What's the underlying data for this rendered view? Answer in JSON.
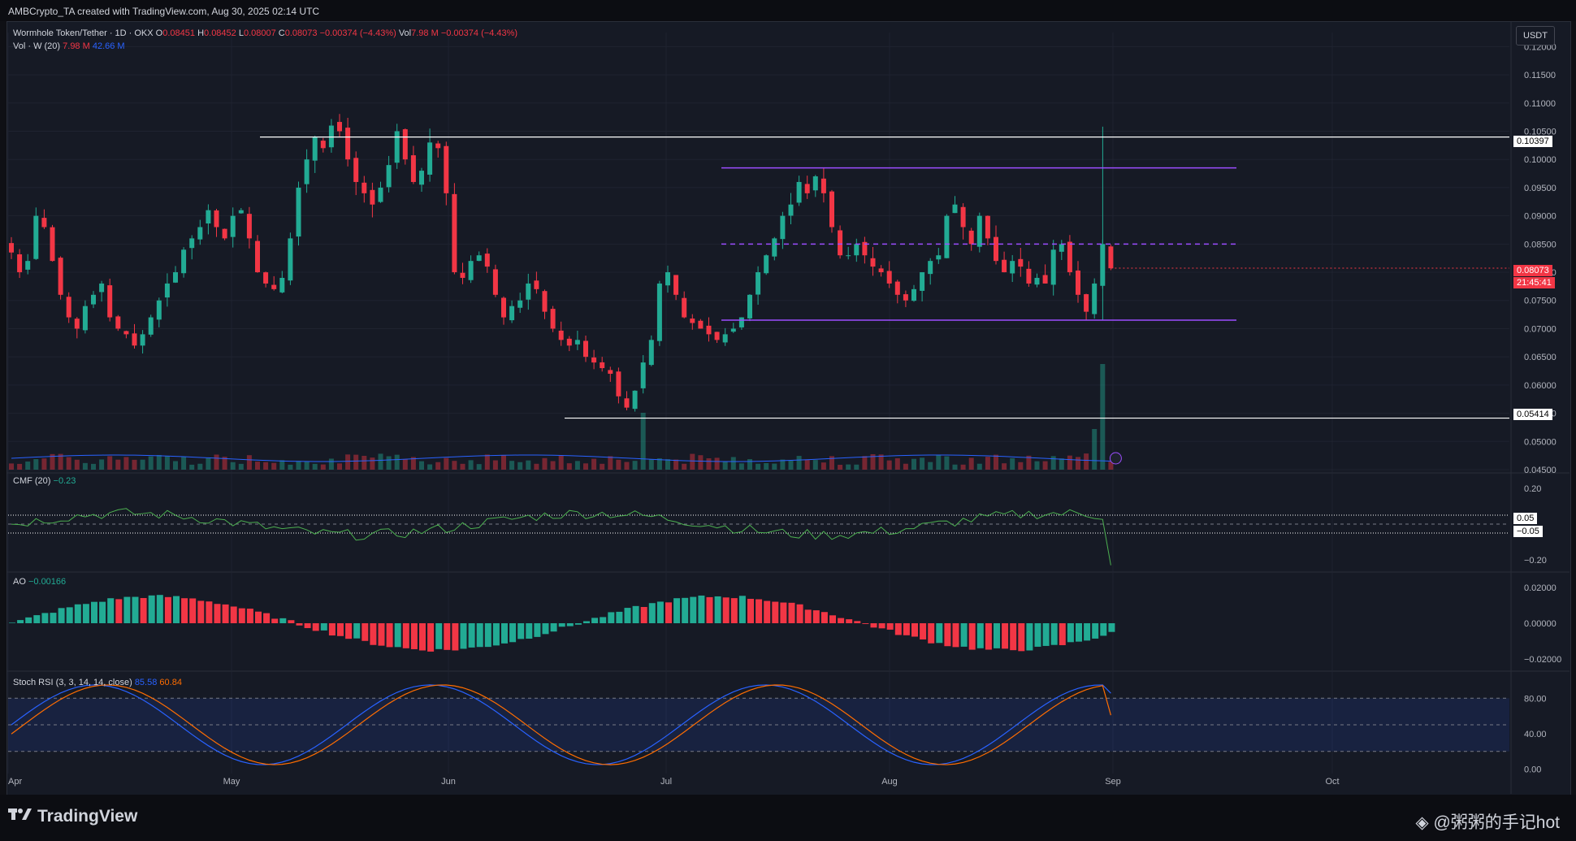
{
  "header": {
    "title": "AMBCrypto_TA created with TradingView.com, Aug 30, 2025 02:14 UTC"
  },
  "legend": {
    "main_symbol": "Wormhole Token/Tether · 1D · OKX",
    "o_label": "O",
    "o_value": "0.08451",
    "h_label": "H",
    "h_value": "0.08452",
    "l_label": "L",
    "l_value": "0.08007",
    "c_label": "C",
    "c_value": "0.08073",
    "change": "−0.00374 (−4.43%)",
    "vol_label": "Vol",
    "vol_value": "7.98 M",
    "vol_change": "−0.00374 (−4.43%)",
    "vol_w_label": "Vol · W (20)",
    "vol_w_1": "7.98 M",
    "vol_w_2": "42.66 M",
    "cmf_label": "CMF (20)",
    "cmf_value": "−0.23",
    "ao_label": "AO",
    "ao_value": "−0.00166",
    "stoch_label": "Stoch RSI (3, 3, 14, 14, close)",
    "stoch_k": "85.58",
    "stoch_d": "60.84"
  },
  "currency_button": "USDT",
  "price_axis": [
    "0.12000",
    "0.11500",
    "0.11000",
    "0.10500",
    "0.10000",
    "0.09500",
    "0.09000",
    "0.08500",
    "0.08000",
    "0.07500",
    "0.07000",
    "0.06500",
    "0.06000",
    "0.05500",
    "0.05000",
    "0.04500"
  ],
  "cmf_axis": [
    "0.20",
    "0.05",
    "−0.05",
    "−0.20"
  ],
  "ao_axis": [
    "0.02000",
    "0.00000",
    "−0.02000"
  ],
  "stoch_axis": [
    "80.00",
    "40.00",
    "0.00"
  ],
  "time_axis": [
    "Apr",
    "May",
    "Jun",
    "Jul",
    "Aug",
    "Sep",
    "Oct"
  ],
  "price_tags": {
    "resistance": "0.10397",
    "support": "0.05414",
    "last_price": "0.08073",
    "countdown": "21:45:41",
    "cmf_upper": "0.05",
    "cmf_lower": "−0.05"
  },
  "colors": {
    "up": "#22ab94",
    "down": "#f23645",
    "channel": "#9c4dff",
    "vol_ma": "#2962ff",
    "cmf": "#4caf50",
    "stoch_k": "#2962ff",
    "stoch_d": "#ff6d00"
  },
  "footer": {
    "brand": "TradingView",
    "watermark": "@粥粥的手记hot"
  },
  "chart_data": {
    "type": "candlestick",
    "symbol": "Wormhole Token/Tether",
    "interval": "1D",
    "exchange": "OKX",
    "last_bar": {
      "open": 0.08451,
      "high": 0.08452,
      "low": 0.08007,
      "close": 0.08073
    },
    "horizontal_levels": [
      0.10397,
      0.05414
    ],
    "channel": {
      "top": 0.0985,
      "mid": 0.085,
      "bottom": 0.0715
    },
    "ylim": [
      0.045,
      0.1225
    ],
    "closes": [
      0.0835,
      0.08,
      0.082,
      0.09,
      0.088,
      0.082,
      0.076,
      0.072,
      0.07,
      0.074,
      0.076,
      0.078,
      0.072,
      0.07,
      0.069,
      0.067,
      0.069,
      0.072,
      0.075,
      0.078,
      0.08,
      0.084,
      0.086,
      0.088,
      0.091,
      0.088,
      0.086,
      0.09,
      0.091,
      0.086,
      0.08,
      0.078,
      0.077,
      0.079,
      0.086,
      0.095,
      0.1,
      0.104,
      0.102,
      0.106,
      0.105,
      0.1,
      0.096,
      0.094,
      0.092,
      0.095,
      0.099,
      0.105,
      0.1,
      0.096,
      0.098,
      0.103,
      0.102,
      0.094,
      0.08,
      0.079,
      0.082,
      0.083,
      0.081,
      0.076,
      0.072,
      0.074,
      0.075,
      0.078,
      0.077,
      0.073,
      0.07,
      0.068,
      0.067,
      0.068,
      0.065,
      0.064,
      0.063,
      0.062,
      0.058,
      0.056,
      0.059,
      0.064,
      0.068,
      0.078,
      0.08,
      0.076,
      0.072,
      0.071,
      0.07,
      0.069,
      0.068,
      0.069,
      0.07,
      0.072,
      0.076,
      0.08,
      0.083,
      0.086,
      0.09,
      0.092,
      0.096,
      0.094,
      0.097,
      0.094,
      0.088,
      0.083,
      0.083,
      0.085,
      0.083,
      0.081,
      0.08,
      0.078,
      0.076,
      0.075,
      0.077,
      0.08,
      0.082,
      0.083,
      0.09,
      0.092,
      0.088,
      0.085,
      0.09,
      0.086,
      0.082,
      0.08,
      0.082,
      0.081,
      0.078,
      0.079,
      0.078,
      0.084,
      0.085,
      0.08,
      0.076,
      0.073,
      0.078,
      0.085,
      0.0807
    ],
    "volume_ma": "Vol · W (20)",
    "indicators": {
      "cmf": {
        "period": 20,
        "last": -0.23,
        "levels": [
          0.05,
          -0.05
        ],
        "ylim": [
          -0.25,
          0.25
        ]
      },
      "ao": {
        "last": -0.00166,
        "ylim": [
          -0.025,
          0.025
        ]
      },
      "stoch_rsi": {
        "params": [
          3,
          3,
          14,
          14
        ],
        "k": 85.58,
        "d": 60.84,
        "bands": [
          80,
          20
        ],
        "ylim": [
          -5,
          105
        ]
      }
    },
    "xlabel": "",
    "ylabel": ""
  }
}
